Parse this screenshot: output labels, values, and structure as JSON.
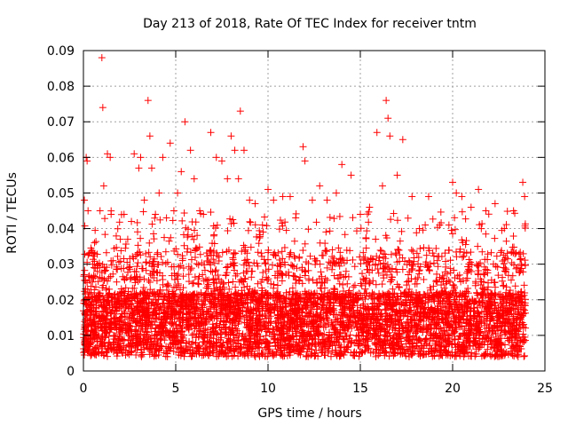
{
  "chart_data": {
    "type": "scatter",
    "title": "Day 213 of 2018, Rate Of TEC Index for receiver tntm",
    "xlabel": "GPS time / hours",
    "ylabel": "ROTI / TECUs",
    "xlim": [
      0,
      25
    ],
    "ylim": [
      0,
      0.09
    ],
    "xticks": [
      "0",
      "5",
      "10",
      "15",
      "20",
      "25"
    ],
    "yticks": [
      "0",
      "0.01",
      "0.02",
      "0.03",
      "0.04",
      "0.05",
      "0.06",
      "0.07",
      "0.08",
      "0.09"
    ],
    "grid": true,
    "marker": "+",
    "color": "#ff0000",
    "series": [
      {
        "points_note_free": true,
        "x": [
          0.05,
          0.15,
          0.2,
          0.25,
          0.3,
          0.4,
          0.5,
          0.6,
          0.75,
          0.9,
          1.0,
          1.05,
          1.1,
          1.3,
          1.45,
          1.5,
          1.6,
          1.8,
          2.0,
          2.2,
          2.4,
          2.6,
          2.75,
          3.0,
          3.1,
          3.3,
          3.5,
          3.6,
          3.7,
          3.9,
          4.1,
          4.3,
          4.5,
          4.7,
          4.9,
          5.1,
          5.3,
          5.5,
          5.8,
          6.0,
          6.3,
          6.5,
          6.9,
          7.2,
          7.5,
          7.8,
          8.0,
          8.2,
          8.4,
          8.5,
          8.7,
          9.0,
          9.3,
          9.7,
          10.0,
          10.3,
          10.8,
          11.2,
          11.5,
          11.9,
          12.0,
          12.4,
          12.8,
          13.2,
          13.7,
          14.0,
          14.5,
          15.0,
          15.5,
          15.9,
          16.2,
          16.4,
          16.5,
          16.6,
          17.0,
          17.3,
          17.8,
          18.2,
          18.7,
          19.3,
          19.8,
          20.0,
          20.2,
          20.5,
          21.0,
          21.4,
          21.8,
          22.3,
          22.8,
          23.3,
          23.8,
          23.9
        ],
        "y": [
          0.048,
          0.06,
          0.059,
          0.045,
          0.033,
          0.022,
          0.03,
          0.036,
          0.028,
          0.045,
          0.088,
          0.074,
          0.052,
          0.061,
          0.06,
          0.044,
          0.031,
          0.025,
          0.037,
          0.044,
          0.037,
          0.042,
          0.061,
          0.057,
          0.06,
          0.048,
          0.076,
          0.066,
          0.057,
          0.044,
          0.05,
          0.06,
          0.043,
          0.064,
          0.045,
          0.05,
          0.056,
          0.07,
          0.062,
          0.054,
          0.045,
          0.044,
          0.067,
          0.06,
          0.059,
          0.054,
          0.066,
          0.062,
          0.054,
          0.073,
          0.062,
          0.048,
          0.047,
          0.041,
          0.051,
          0.048,
          0.049,
          0.049,
          0.043,
          0.063,
          0.059,
          0.048,
          0.052,
          0.048,
          0.05,
          0.058,
          0.055,
          0.044,
          0.046,
          0.067,
          0.052,
          0.076,
          0.071,
          0.066,
          0.055,
          0.065,
          0.049,
          0.04,
          0.049,
          0.041,
          0.041,
          0.053,
          0.05,
          0.049,
          0.046,
          0.051,
          0.045,
          0.047,
          0.04,
          0.045,
          0.053,
          0.049
        ]
      }
    ]
  }
}
